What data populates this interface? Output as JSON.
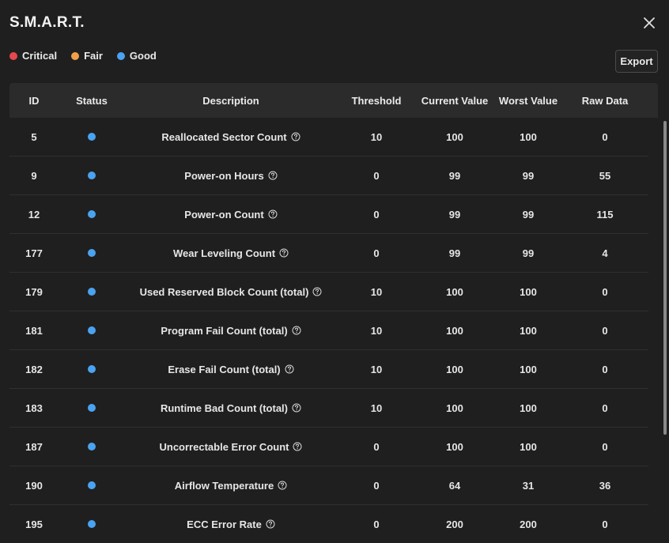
{
  "dialog": {
    "title": "S.M.A.R.T.",
    "export_label": "Export"
  },
  "legend": [
    {
      "label": "Critical",
      "color": "#e5484d"
    },
    {
      "label": "Fair",
      "color": "#f0a04b"
    },
    {
      "label": "Good",
      "color": "#4aa3f0"
    }
  ],
  "table": {
    "headers": {
      "id": "ID",
      "status": "Status",
      "description": "Description",
      "threshold": "Threshold",
      "current": "Current Value",
      "worst": "Worst Value",
      "raw": "Raw Data"
    },
    "rows": [
      {
        "id": "5",
        "status": "good",
        "description": "Reallocated Sector Count",
        "threshold": "10",
        "current": "100",
        "worst": "100",
        "raw": "0"
      },
      {
        "id": "9",
        "status": "good",
        "description": "Power-on Hours",
        "threshold": "0",
        "current": "99",
        "worst": "99",
        "raw": "55"
      },
      {
        "id": "12",
        "status": "good",
        "description": "Power-on Count",
        "threshold": "0",
        "current": "99",
        "worst": "99",
        "raw": "115"
      },
      {
        "id": "177",
        "status": "good",
        "description": "Wear Leveling Count",
        "threshold": "0",
        "current": "99",
        "worst": "99",
        "raw": "4"
      },
      {
        "id": "179",
        "status": "good",
        "description": "Used Reserved Block Count (total)",
        "threshold": "10",
        "current": "100",
        "worst": "100",
        "raw": "0"
      },
      {
        "id": "181",
        "status": "good",
        "description": "Program Fail Count (total)",
        "threshold": "10",
        "current": "100",
        "worst": "100",
        "raw": "0"
      },
      {
        "id": "182",
        "status": "good",
        "description": "Erase Fail Count (total)",
        "threshold": "10",
        "current": "100",
        "worst": "100",
        "raw": "0"
      },
      {
        "id": "183",
        "status": "good",
        "description": "Runtime Bad Count (total)",
        "threshold": "10",
        "current": "100",
        "worst": "100",
        "raw": "0"
      },
      {
        "id": "187",
        "status": "good",
        "description": "Uncorrectable Error Count",
        "threshold": "0",
        "current": "100",
        "worst": "100",
        "raw": "0"
      },
      {
        "id": "190",
        "status": "good",
        "description": "Airflow Temperature",
        "threshold": "0",
        "current": "64",
        "worst": "31",
        "raw": "36"
      },
      {
        "id": "195",
        "status": "good",
        "description": "ECC Error Rate",
        "threshold": "0",
        "current": "200",
        "worst": "200",
        "raw": "0"
      }
    ]
  }
}
